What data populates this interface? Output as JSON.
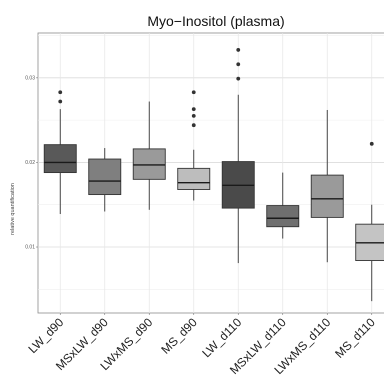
{
  "chart_data": {
    "type": "boxplot",
    "title": "Myo−Inositol (plasma)",
    "xlabel": "",
    "ylabel": "relative quantification",
    "ylim": [
      0.0022,
      0.0353
    ],
    "yticks": [
      0.01,
      0.02,
      0.03
    ],
    "ytick_labels": [
      "0.01",
      "0.02",
      "0.03"
    ],
    "grid": true,
    "legend": "none",
    "categories": [
      "LW_d90",
      "MSxLW_d90",
      "LWxMS_d90",
      "MS_d90",
      "LW_d110",
      "MSxLW_d110",
      "LWxMS_d110",
      "MS_d110"
    ],
    "boxes": [
      {
        "category": "LW_d90",
        "lower_whisker": 0.0139,
        "q1": 0.0188,
        "median": 0.02,
        "q3": 0.0221,
        "upper_whisker": 0.0263,
        "outliers": [
          0.0272,
          0.0283
        ],
        "fill": "#595959"
      },
      {
        "category": "MSxLW_d90",
        "lower_whisker": 0.0142,
        "q1": 0.0162,
        "median": 0.0178,
        "q3": 0.0204,
        "upper_whisker": 0.0217,
        "outliers": [],
        "fill": "#7f7f7f"
      },
      {
        "category": "LWxMS_d90",
        "lower_whisker": 0.0144,
        "q1": 0.018,
        "median": 0.0197,
        "q3": 0.0216,
        "upper_whisker": 0.0272,
        "outliers": [],
        "fill": "#9a9a9a"
      },
      {
        "category": "MS_d90",
        "lower_whisker": 0.0155,
        "q1": 0.0168,
        "median": 0.0176,
        "q3": 0.0193,
        "upper_whisker": 0.0215,
        "outliers": [
          0.0244,
          0.0255,
          0.0263,
          0.0283
        ],
        "fill": "#bdbdbd"
      },
      {
        "category": "LW_d110",
        "lower_whisker": 0.0081,
        "q1": 0.0146,
        "median": 0.0173,
        "q3": 0.0201,
        "upper_whisker": 0.028,
        "outliers": [
          0.0299,
          0.0316,
          0.0333
        ],
        "fill": "#4a4a4a"
      },
      {
        "category": "MSxLW_d110",
        "lower_whisker": 0.011,
        "q1": 0.0124,
        "median": 0.0134,
        "q3": 0.0149,
        "upper_whisker": 0.0188,
        "outliers": [],
        "fill": "#6f6f6f"
      },
      {
        "category": "LWxMS_d110",
        "lower_whisker": 0.0082,
        "q1": 0.0135,
        "median": 0.0157,
        "q3": 0.0185,
        "upper_whisker": 0.0262,
        "outliers": [],
        "fill": "#9a9a9a"
      },
      {
        "category": "MS_d110",
        "lower_whisker": 0.0036,
        "q1": 0.0084,
        "median": 0.0105,
        "q3": 0.0127,
        "upper_whisker": 0.015,
        "outliers": [
          0.0222
        ],
        "fill": "#c4c4c4"
      }
    ]
  }
}
